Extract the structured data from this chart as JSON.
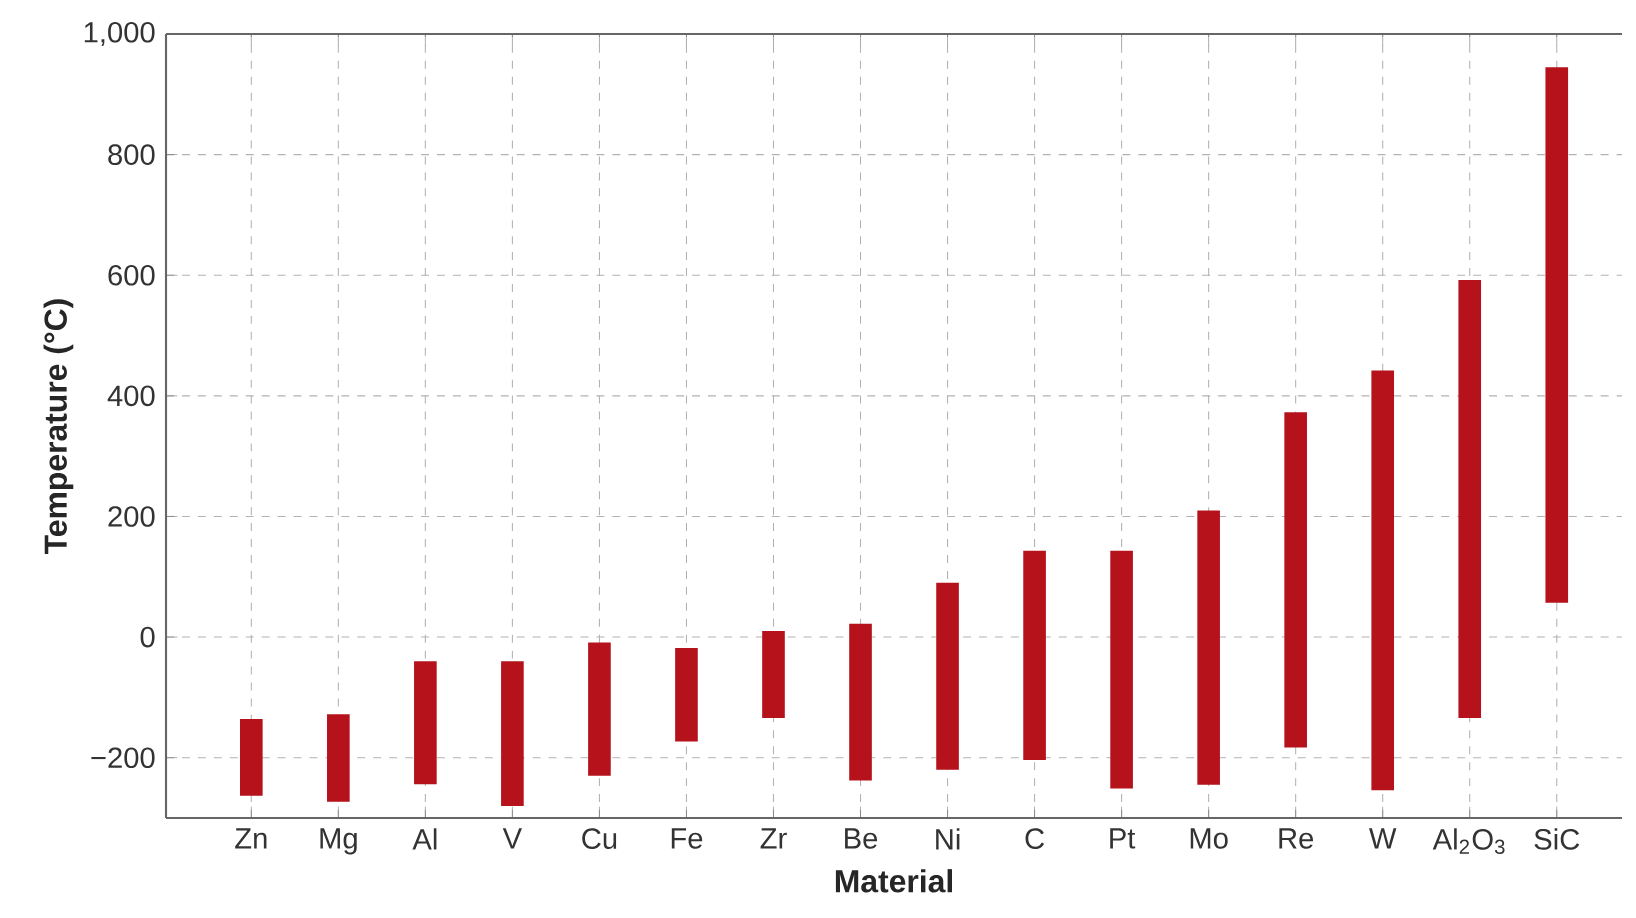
{
  "chart_data": {
    "type": "bar",
    "xlabel": "Material",
    "ylabel": "Temperature (°C)",
    "categories": [
      "Zn",
      "Mg",
      "Al",
      "V",
      "Cu",
      "Fe",
      "Zr",
      "Be",
      "Ni",
      "C",
      "Pt",
      "Mo",
      "Re",
      "W",
      "Al$_{2}$O$_{3}$",
      "SiC"
    ],
    "base": [
      -263,
      -273,
      -244,
      -280,
      -230,
      -173,
      -134,
      -238,
      -220,
      -204,
      -251,
      -245,
      -183,
      -254,
      -134,
      57
    ],
    "values": [
      127,
      145,
      204,
      240,
      221,
      155,
      144,
      260,
      310,
      347,
      394,
      455,
      556,
      696,
      726,
      888
    ],
    "color": "#b5121b",
    "ylim": [
      -300,
      1000
    ],
    "yticks": [
      {
        "value": -200,
        "label": "−200"
      },
      0,
      200,
      400,
      600,
      800,
      {
        "value": 1000,
        "label": "1,000"
      }
    ],
    "grid": true
  }
}
